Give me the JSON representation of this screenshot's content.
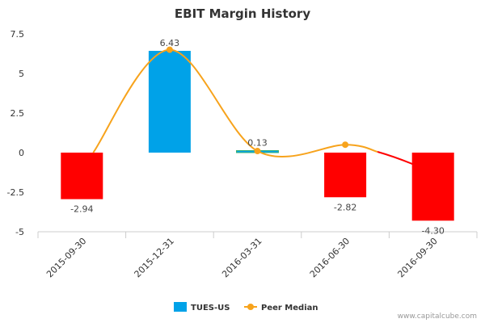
{
  "chart_data": {
    "type": "bar",
    "title": "EBIT Margin History",
    "categories": [
      "2015-09-30",
      "2015-12-31",
      "2016-03-31",
      "2016-06-30",
      "2016-09-30"
    ],
    "series": [
      {
        "name": "TUES-US",
        "type": "bar",
        "values": [
          -2.94,
          6.43,
          0.13,
          -2.82,
          -4.3
        ],
        "data_labels": [
          "-2.94",
          "6.43",
          "0.13",
          "-2.82",
          "-4.30"
        ]
      },
      {
        "name": "Peer Median",
        "type": "line",
        "values": [
          null,
          6.5,
          0.1,
          0.5,
          null
        ]
      }
    ],
    "y_ticks": [
      "7.5",
      "5",
      "2.5",
      "0",
      "-2.5",
      "-5"
    ],
    "ylim": [
      -5,
      7.5
    ],
    "grid": false,
    "legend_position": "bottom"
  },
  "colors": {
    "negative": "#ff0000",
    "positive": "#00a2e8",
    "line": "#f7a31c",
    "axis": "#cccccc"
  },
  "credit": "www.capitalcube.com"
}
